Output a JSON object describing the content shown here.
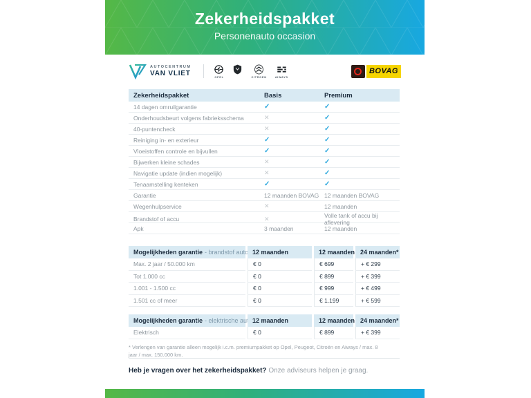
{
  "header": {
    "title": "Zekerheidspakket",
    "subtitle": "Personenauto occasion"
  },
  "branding": {
    "dealer_name_top": "AUTOCENTRUM",
    "dealer_name_bottom": "VAN VLIET",
    "brand_logos": [
      "OPEL",
      "PEUGEOT",
      "CITROEN",
      "AIWAYS"
    ],
    "bovag_label": "BOVAG"
  },
  "package_table": {
    "headers": [
      "Zekerheidspakket",
      "Basis",
      "Premium"
    ],
    "rows": [
      {
        "label": "14 dagen omruilgarantie",
        "basis": "check",
        "premium": "check"
      },
      {
        "label": "Onderhoudsbeurt volgens fabrieksschema",
        "basis": "cross",
        "premium": "check"
      },
      {
        "label": "40-puntencheck",
        "basis": "cross",
        "premium": "check"
      },
      {
        "label": "Reiniging in- en exterieur",
        "basis": "check",
        "premium": "check"
      },
      {
        "label": "Vloeistoffen controle en bijvullen",
        "basis": "check",
        "premium": "check"
      },
      {
        "label": "Bijwerken kleine schades",
        "basis": "cross",
        "premium": "check"
      },
      {
        "label": "Navigatie update (indien mogelijk)",
        "basis": "cross",
        "premium": "check"
      },
      {
        "label": "Tenaamstelling kenteken",
        "basis": "check",
        "premium": "check"
      },
      {
        "label": "Garantie",
        "basis": "12 maanden BOVAG",
        "premium": "12 maanden BOVAG"
      },
      {
        "label": "Wegenhulpservice",
        "basis": "cross",
        "premium": "12 maanden"
      },
      {
        "label": "Brandstof of accu",
        "basis": "cross",
        "premium": "Volle tank of accu bij aflevering"
      },
      {
        "label": "Apk",
        "basis": "3 maanden",
        "premium": "12 maanden"
      }
    ]
  },
  "fuel_table": {
    "title": "Mogelijkheden garantie",
    "subtitle": "- brandstof auto",
    "cols": [
      "12 maanden",
      "12 maanden",
      "24 maanden*"
    ],
    "rows": [
      {
        "label": "Max. 2 jaar / 50.000 km",
        "c1": "€ 0",
        "c2": "€ 699",
        "c3": "+ € 299"
      },
      {
        "label": "Tot 1.000 cc",
        "c1": "€ 0",
        "c2": "€ 899",
        "c3": "+ € 399"
      },
      {
        "label": "1.001 - 1.500 cc",
        "c1": "€ 0",
        "c2": "€ 999",
        "c3": "+ € 499"
      },
      {
        "label": "1.501 cc of meer",
        "c1": "€ 0",
        "c2": "€ 1.199",
        "c3": "+ € 599"
      }
    ]
  },
  "electric_table": {
    "title": "Mogelijkheden garantie",
    "subtitle": "- elektrische auto",
    "cols": [
      "12 maanden",
      "12 maanden",
      "24 maanden*"
    ],
    "rows": [
      {
        "label": "Elektrisch",
        "c1": "€ 0",
        "c2": "€ 899",
        "c3": "+ € 399"
      }
    ]
  },
  "footnote": "* Verlengen van garantie alleen mogelijk i.c.m. premiumpakket op Opel, Peugeot, Citroën en Aiways / max. 8 jaar / max. 150.000 km.",
  "footer": {
    "question_bold": "Heb je vragen over het zekerheidspakket?",
    "question_rest": "Onze adviseurs helpen je graag."
  },
  "colors": {
    "accent_green": "#55b846",
    "accent_blue": "#18a8e1",
    "table_header_bg": "#d9eaf3",
    "check": "#2fa9de",
    "cross": "#c4c9cd",
    "bovag_yellow": "#f6d500",
    "bovag_red": "#e1251b",
    "navy_text": "#1c2c3d"
  }
}
